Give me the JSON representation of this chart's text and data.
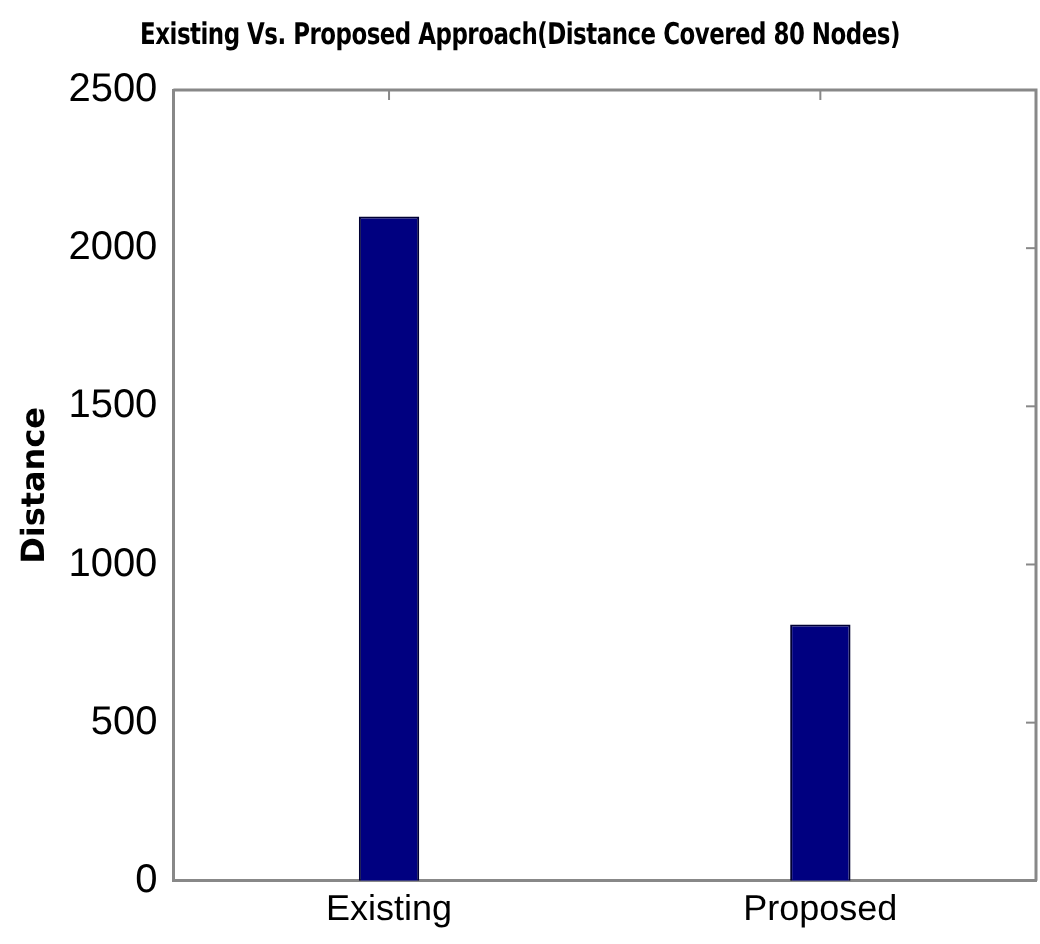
{
  "chart_data": {
    "type": "bar",
    "title": "Existing Vs. Proposed Approach(Distance Covered 80 Nodes)",
    "ylabel": "Distance",
    "categories": [
      "Existing",
      "Proposed"
    ],
    "values": [
      2100,
      810
    ],
    "color": "#000080",
    "ylim": [
      0,
      2500
    ],
    "yticks": [
      0,
      500,
      1000,
      1500,
      2000,
      2500
    ],
    "grid": false,
    "legend": false
  }
}
